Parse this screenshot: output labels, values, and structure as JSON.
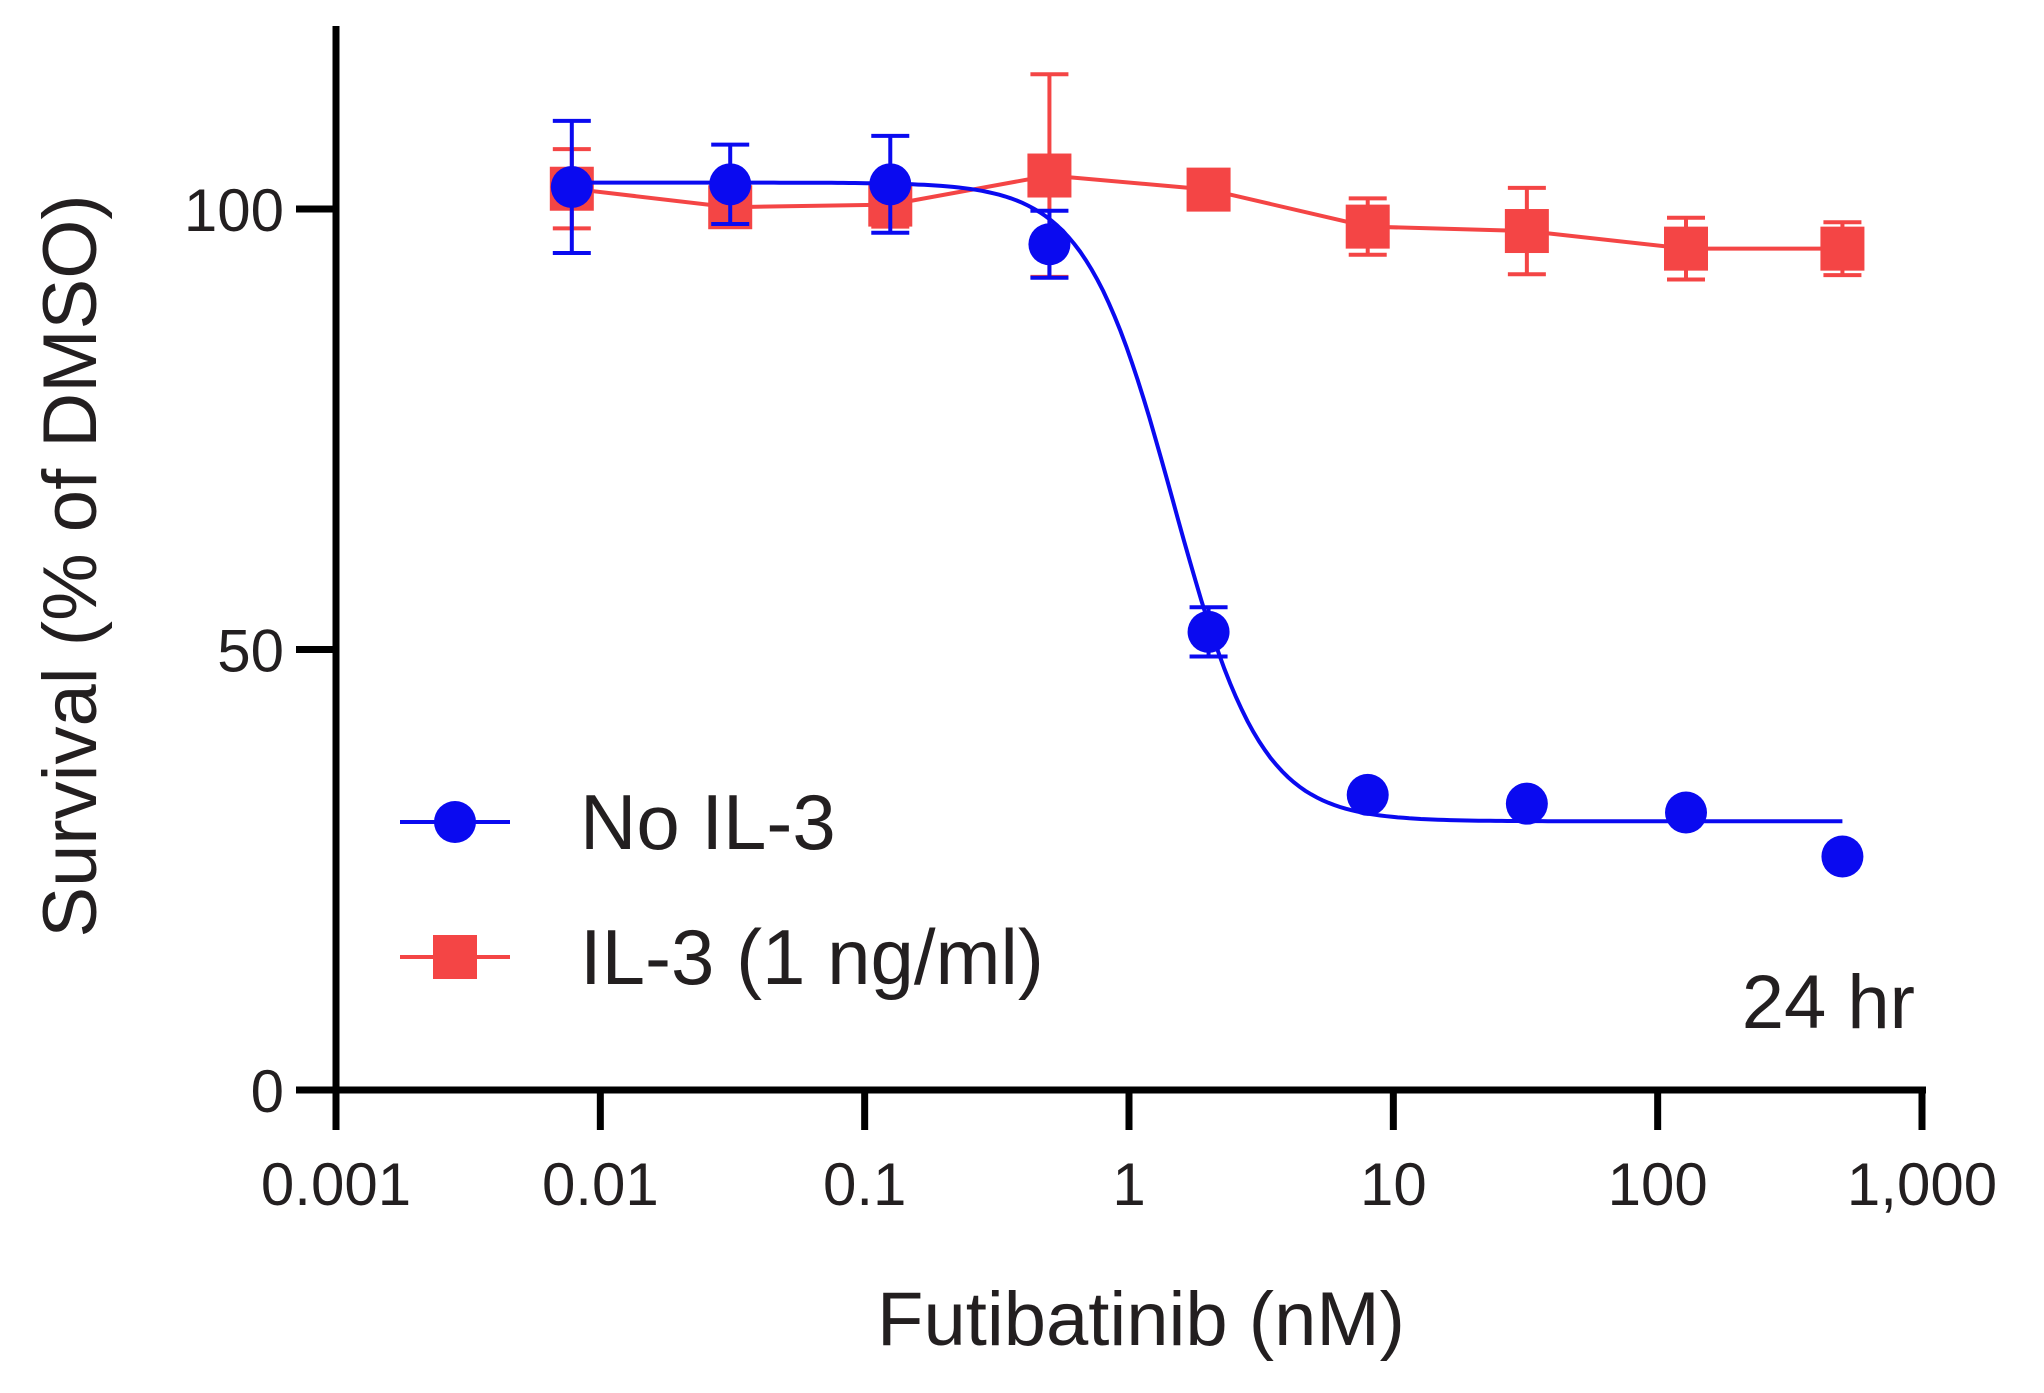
{
  "chart_data": {
    "type": "scatter",
    "title": "",
    "xlabel": "Futibatinib (nM)",
    "ylabel": "Survival (% of DMSO)",
    "xscale": "log",
    "xlim": [
      0.001,
      1000
    ],
    "ylim": [
      0,
      120
    ],
    "x_ticks": [
      {
        "value": 0.001,
        "label": "0.001"
      },
      {
        "value": 0.01,
        "label": "0.01"
      },
      {
        "value": 0.1,
        "label": "0.1"
      },
      {
        "value": 1,
        "label": "1"
      },
      {
        "value": 10,
        "label": "10"
      },
      {
        "value": 100,
        "label": "100"
      },
      {
        "value": 1000,
        "label": "1,000"
      }
    ],
    "y_ticks": [
      {
        "value": 0,
        "label": "0"
      },
      {
        "value": 50,
        "label": "50"
      },
      {
        "value": 100,
        "label": "100"
      }
    ],
    "grid": false,
    "legend_position": "bottom-left",
    "annotation": "24 hr",
    "series": [
      {
        "name": "No IL-3",
        "color": "#0a0af0",
        "marker": "circle",
        "x": [
          0.0078,
          0.031,
          0.125,
          0.5,
          2,
          8,
          32,
          128,
          500
        ],
        "y": [
          102.5,
          102.8,
          102.8,
          96,
          52,
          33.5,
          32.5,
          31.5,
          26.5
        ],
        "error": [
          7.5,
          4.5,
          5.5,
          3.8,
          2.8,
          0,
          0,
          0,
          0
        ],
        "fit": {
          "model": "sigmoid",
          "top": 103,
          "bottom": 30.5,
          "ic50": 1.47,
          "hill": 2.6,
          "x_range": [
            0.0078,
            500
          ]
        }
      },
      {
        "name": "IL-3 (1 ng/ml)",
        "color": "#f44545",
        "marker": "square",
        "x": [
          0.0078,
          0.031,
          0.125,
          0.5,
          2,
          8,
          32,
          128,
          500
        ],
        "y": [
          102.3,
          100.2,
          100.5,
          103.8,
          102.2,
          98,
          97.5,
          95.5,
          95.5
        ],
        "error": [
          4.5,
          2,
          2.5,
          11.5,
          1.5,
          3.2,
          4.9,
          3.5,
          3
        ],
        "connect_points": true
      }
    ]
  }
}
